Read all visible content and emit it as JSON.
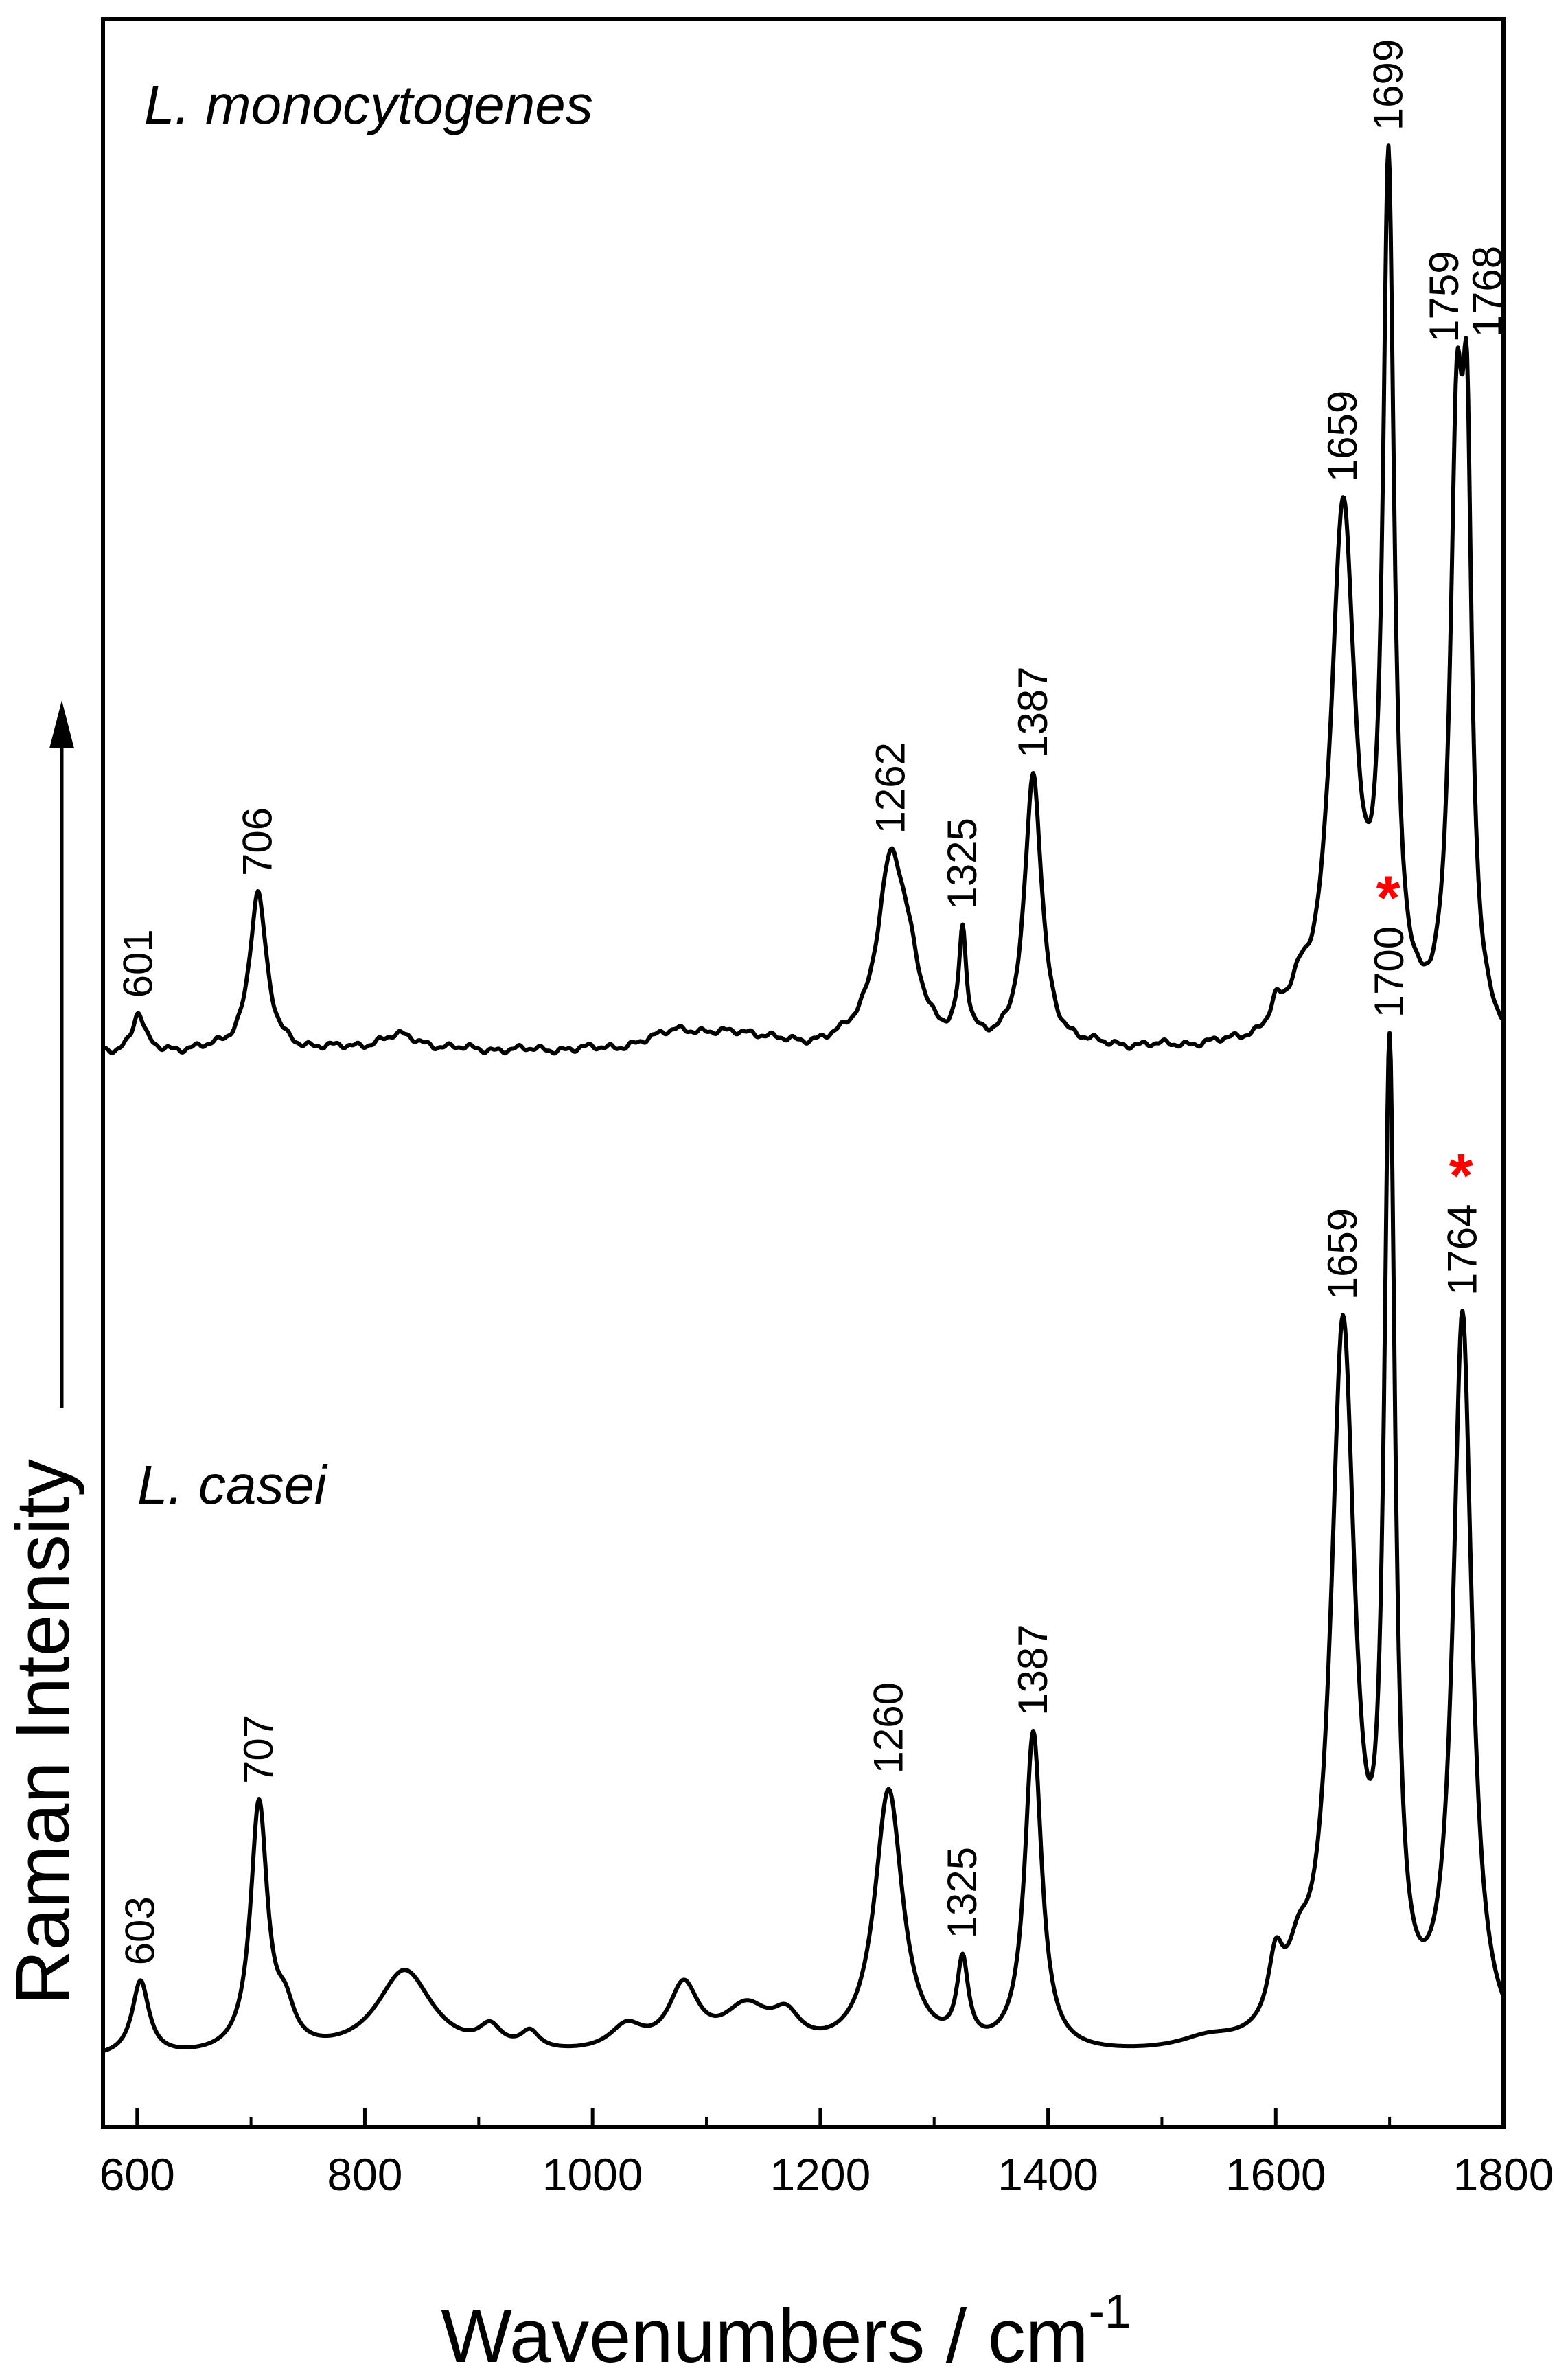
{
  "chart_data": {
    "type": "line",
    "xlabel": "Wavenumbers / cm",
    "xlabel_superscript": "-1",
    "ylabel": "Raman Intensity",
    "xlim": [
      570,
      1800
    ],
    "x_ticks": [
      600,
      800,
      1000,
      1200,
      1400,
      1600,
      1800
    ],
    "grid": false,
    "legend": "none",
    "y_axis_arrow": true,
    "series": [
      {
        "name": "L. monocytogenes",
        "color": "#000000",
        "baseline": 0.05,
        "noise": 0.012,
        "peaks": [
          {
            "x": 601,
            "height": 0.1,
            "width": 6
          },
          {
            "x": 706,
            "height": 0.42,
            "width": 9
          },
          {
            "x": 830,
            "height": 0.04,
            "width": 25
          },
          {
            "x": 1075,
            "height": 0.05,
            "width": 25
          },
          {
            "x": 1130,
            "height": 0.04,
            "width": 30
          },
          {
            "x": 1262,
            "height": 0.48,
            "width": 15
          },
          {
            "x": 1278,
            "height": 0.12,
            "width": 12
          },
          {
            "x": 1325,
            "height": 0.28,
            "width": 4
          },
          {
            "x": 1387,
            "height": 0.72,
            "width": 9
          },
          {
            "x": 1600,
            "height": 0.06,
            "width": 6
          },
          {
            "x": 1620,
            "height": 0.08,
            "width": 10
          },
          {
            "x": 1659,
            "height": 1.4,
            "width": 13
          },
          {
            "x": 1699,
            "height": 2.24,
            "width": 6
          },
          {
            "x": 1759,
            "height": 1.5,
            "width": 7
          },
          {
            "x": 1768,
            "height": 1.24,
            "width": 5
          }
        ],
        "ymin": 0.0,
        "ymax": 2.4
      },
      {
        "name": "L. casei",
        "color": "#000000",
        "baseline": 0.06,
        "noise": 0.0,
        "peaks": [
          {
            "x": 603,
            "height": 0.21,
            "width": 9
          },
          {
            "x": 707,
            "height": 0.7,
            "width": 9
          },
          {
            "x": 730,
            "height": 0.1,
            "width": 10
          },
          {
            "x": 835,
            "height": 0.24,
            "width": 30
          },
          {
            "x": 910,
            "height": 0.06,
            "width": 12
          },
          {
            "x": 945,
            "height": 0.05,
            "width": 10
          },
          {
            "x": 1030,
            "height": 0.07,
            "width": 18
          },
          {
            "x": 1080,
            "height": 0.18,
            "width": 16
          },
          {
            "x": 1135,
            "height": 0.12,
            "width": 25
          },
          {
            "x": 1170,
            "height": 0.08,
            "width": 15
          },
          {
            "x": 1260,
            "height": 0.74,
            "width": 15
          },
          {
            "x": 1325,
            "height": 0.23,
            "width": 6
          },
          {
            "x": 1387,
            "height": 0.9,
            "width": 9
          },
          {
            "x": 1540,
            "height": 0.03,
            "width": 30
          },
          {
            "x": 1600,
            "height": 0.18,
            "width": 8
          },
          {
            "x": 1620,
            "height": 0.15,
            "width": 12
          },
          {
            "x": 1659,
            "height": 2.0,
            "width": 13
          },
          {
            "x": 1700,
            "height": 2.65,
            "width": 6
          },
          {
            "x": 1764,
            "height": 2.05,
            "width": 10
          }
        ],
        "ymin": 0.0,
        "ymax": 2.9
      }
    ],
    "labels": [
      {
        "text": "L. monocytogenes",
        "type": "series-name"
      },
      {
        "text": "L. casei",
        "type": "series-name"
      },
      {
        "text": "601",
        "x": 601,
        "series": 0
      },
      {
        "text": "706",
        "x": 706,
        "series": 0
      },
      {
        "text": "1262",
        "x": 1262,
        "series": 0
      },
      {
        "text": "1325",
        "x": 1325,
        "series": 0
      },
      {
        "text": "1387",
        "x": 1387,
        "series": 0
      },
      {
        "text": "1659",
        "x": 1659,
        "series": 0
      },
      {
        "text": "1699",
        "x": 1699,
        "series": 0
      },
      {
        "text": "1759",
        "x": 1759,
        "series": 0
      },
      {
        "text": "1768",
        "x": 1768,
        "series": 0
      },
      {
        "text": "603",
        "x": 603,
        "series": 1
      },
      {
        "text": "707",
        "x": 707,
        "series": 1
      },
      {
        "text": "1260",
        "x": 1260,
        "series": 1
      },
      {
        "text": "1325",
        "x": 1325,
        "series": 1
      },
      {
        "text": "1387",
        "x": 1387,
        "series": 1
      },
      {
        "text": "1659",
        "x": 1659,
        "series": 1
      },
      {
        "text": "1700",
        "x": 1700,
        "series": 1
      },
      {
        "text": "1764",
        "x": 1764,
        "series": 1
      }
    ],
    "annotations": [
      {
        "text": "*",
        "color": "#ff0000",
        "near": "1700"
      },
      {
        "text": "*",
        "color": "#ff0000",
        "near": "1764"
      }
    ]
  }
}
